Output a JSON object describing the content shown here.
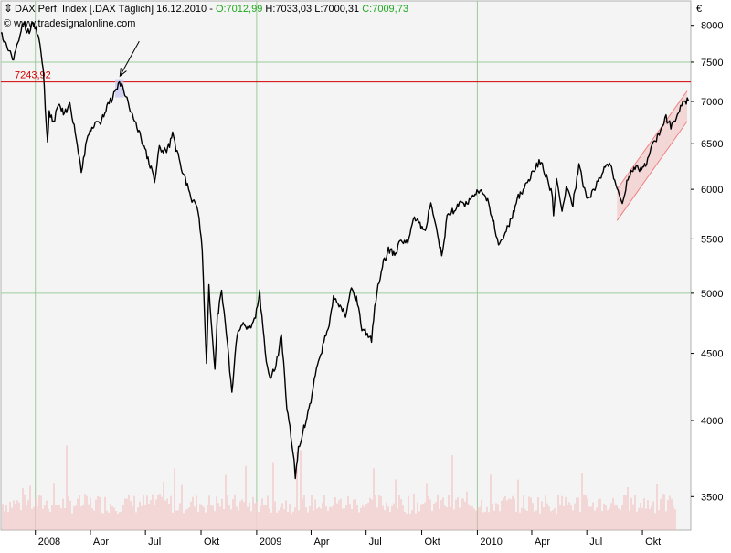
{
  "header": {
    "instrument": "DAX Perf. Index [.DAX  Täglich]",
    "date": "16.12.2010",
    "open": "O:7012,99",
    "high": "H:7033,03",
    "low": "L:7000,31",
    "close": "C:7009,73",
    "source": "© www.tradesignalonline.com",
    "currency": "€"
  },
  "colors": {
    "price": "#000000",
    "grid": "#9ccc9c",
    "resistance": "#d40000",
    "close_text": "#1faa1f",
    "channel": "#f08080",
    "volume": "#f2b8b8",
    "background": "#f4f4f4"
  },
  "chart_data": {
    "type": "line",
    "title": "DAX Perf. Index [.DAX  Täglich]",
    "y_scale": "log",
    "ylim": [
      3300,
      8350
    ],
    "yticks": [
      3500,
      4000,
      4500,
      5000,
      5500,
      6000,
      6500,
      7000,
      7500,
      8000
    ],
    "ytick_labels": [
      "3500",
      "4000",
      "4500",
      "5000",
      "5500",
      "6000",
      "6500",
      "7000",
      "7500",
      "8000"
    ],
    "x_range": [
      "2007-11-05",
      "2010-12-20"
    ],
    "xticks": [
      {
        "date": "2008-01-01",
        "label": "2008"
      },
      {
        "date": "2008-04-01",
        "label": "Apr"
      },
      {
        "date": "2008-07-01",
        "label": "Jul"
      },
      {
        "date": "2008-10-01",
        "label": "Okt"
      },
      {
        "date": "2009-01-01",
        "label": "2009"
      },
      {
        "date": "2009-04-01",
        "label": "Apr"
      },
      {
        "date": "2009-07-01",
        "label": "Jul"
      },
      {
        "date": "2009-10-01",
        "label": "Okt"
      },
      {
        "date": "2010-01-01",
        "label": "2010"
      },
      {
        "date": "2010-04-01",
        "label": "Apr"
      },
      {
        "date": "2010-07-01",
        "label": "Jul"
      },
      {
        "date": "2010-10-01",
        "label": "Okt"
      }
    ],
    "vertical_grid": [
      "2008-01-01",
      "2009-01-01",
      "2010-01-01"
    ],
    "horizontal_grid": [
      5000,
      7500
    ],
    "series": [
      {
        "values": [
          [
            "2007-11-05",
            7900
          ],
          [
            "2007-11-15",
            7700
          ],
          [
            "2007-11-26",
            7550
          ],
          [
            "2007-12-03",
            7750
          ],
          [
            "2007-12-12",
            8050
          ],
          [
            "2007-12-20",
            7900
          ],
          [
            "2007-12-28",
            8050
          ],
          [
            "2008-01-07",
            7800
          ],
          [
            "2008-01-14",
            7400
          ],
          [
            "2008-01-21",
            6500
          ],
          [
            "2008-01-24",
            6850
          ],
          [
            "2008-01-31",
            6750
          ],
          [
            "2008-02-08",
            6950
          ],
          [
            "2008-02-18",
            6850
          ],
          [
            "2008-02-27",
            6950
          ],
          [
            "2008-03-07",
            6650
          ],
          [
            "2008-03-17",
            6200
          ],
          [
            "2008-03-26",
            6550
          ],
          [
            "2008-04-07",
            6700
          ],
          [
            "2008-04-18",
            6750
          ],
          [
            "2008-04-30",
            6950
          ],
          [
            "2008-05-08",
            7050
          ],
          [
            "2008-05-19",
            7230
          ],
          [
            "2008-05-28",
            7100
          ],
          [
            "2008-06-06",
            6900
          ],
          [
            "2008-06-17",
            6700
          ],
          [
            "2008-06-27",
            6500
          ],
          [
            "2008-07-07",
            6300
          ],
          [
            "2008-07-16",
            6100
          ],
          [
            "2008-07-24",
            6450
          ],
          [
            "2008-08-05",
            6400
          ],
          [
            "2008-08-15",
            6600
          ],
          [
            "2008-08-26",
            6300
          ],
          [
            "2008-09-05",
            6100
          ],
          [
            "2008-09-16",
            5900
          ],
          [
            "2008-09-26",
            5800
          ],
          [
            "2008-10-03",
            5400
          ],
          [
            "2008-10-10",
            4400
          ],
          [
            "2008-10-14",
            5050
          ],
          [
            "2008-10-24",
            4350
          ],
          [
            "2008-10-28",
            4800
          ],
          [
            "2008-11-04",
            5000
          ],
          [
            "2008-11-12",
            4650
          ],
          [
            "2008-11-21",
            4200
          ],
          [
            "2008-11-28",
            4600
          ],
          [
            "2008-12-08",
            4750
          ],
          [
            "2008-12-19",
            4700
          ],
          [
            "2008-12-30",
            4800
          ],
          [
            "2009-01-06",
            5000
          ],
          [
            "2009-01-15",
            4500
          ],
          [
            "2009-01-23",
            4300
          ],
          [
            "2009-02-02",
            4400
          ],
          [
            "2009-02-11",
            4650
          ],
          [
            "2009-02-20",
            4100
          ],
          [
            "2009-03-02",
            3800
          ],
          [
            "2009-03-06",
            3620
          ],
          [
            "2009-03-11",
            3800
          ],
          [
            "2009-03-20",
            3950
          ],
          [
            "2009-03-30",
            4100
          ],
          [
            "2009-04-08",
            4350
          ],
          [
            "2009-04-17",
            4500
          ],
          [
            "2009-04-29",
            4700
          ],
          [
            "2009-05-08",
            4950
          ],
          [
            "2009-05-19",
            4900
          ],
          [
            "2009-05-28",
            4800
          ],
          [
            "2009-06-05",
            5050
          ],
          [
            "2009-06-15",
            4950
          ],
          [
            "2009-06-24",
            4700
          ],
          [
            "2009-07-03",
            4650
          ],
          [
            "2009-07-10",
            4600
          ],
          [
            "2009-07-17",
            4950
          ],
          [
            "2009-07-28",
            5250
          ],
          [
            "2009-08-07",
            5400
          ],
          [
            "2009-08-19",
            5350
          ],
          [
            "2009-08-28",
            5500
          ],
          [
            "2009-09-08",
            5450
          ],
          [
            "2009-09-17",
            5700
          ],
          [
            "2009-09-28",
            5650
          ],
          [
            "2009-10-07",
            5600
          ],
          [
            "2009-10-16",
            5850
          ],
          [
            "2009-10-27",
            5550
          ],
          [
            "2009-11-03",
            5350
          ],
          [
            "2009-11-12",
            5700
          ],
          [
            "2009-11-24",
            5800
          ],
          [
            "2009-12-04",
            5850
          ],
          [
            "2009-12-15",
            5850
          ],
          [
            "2009-12-28",
            5950
          ],
          [
            "2010-01-07",
            6000
          ],
          [
            "2010-01-18",
            5900
          ],
          [
            "2010-01-28",
            5650
          ],
          [
            "2010-02-05",
            5450
          ],
          [
            "2010-02-16",
            5550
          ],
          [
            "2010-02-26",
            5700
          ],
          [
            "2010-03-08",
            5900
          ],
          [
            "2010-03-18",
            6000
          ],
          [
            "2010-03-30",
            6150
          ],
          [
            "2010-04-09",
            6250
          ],
          [
            "2010-04-15",
            6300
          ],
          [
            "2010-04-27",
            6100
          ],
          [
            "2010-05-05",
            5950
          ],
          [
            "2010-05-07",
            5700
          ],
          [
            "2010-05-12",
            6150
          ],
          [
            "2010-05-21",
            5800
          ],
          [
            "2010-05-28",
            6000
          ],
          [
            "2010-06-08",
            5850
          ],
          [
            "2010-06-18",
            6250
          ],
          [
            "2010-06-29",
            5950
          ],
          [
            "2010-07-06",
            5900
          ],
          [
            "2010-07-16",
            6050
          ],
          [
            "2010-07-28",
            6200
          ],
          [
            "2010-08-09",
            6300
          ],
          [
            "2010-08-20",
            6000
          ],
          [
            "2010-08-27",
            5850
          ],
          [
            "2010-09-07",
            6100
          ],
          [
            "2010-09-17",
            6250
          ],
          [
            "2010-09-28",
            6200
          ],
          [
            "2010-10-08",
            6300
          ],
          [
            "2010-10-19",
            6500
          ],
          [
            "2010-10-29",
            6600
          ],
          [
            "2010-11-09",
            6800
          ],
          [
            "2010-11-17",
            6700
          ],
          [
            "2010-11-26",
            6800
          ],
          [
            "2010-12-03",
            6950
          ],
          [
            "2010-12-09",
            7000
          ],
          [
            "2010-12-16",
            7010
          ]
        ]
      }
    ],
    "annotations": [
      {
        "type": "hline",
        "value": 7243.92,
        "label": "7243,92"
      },
      {
        "type": "highlight",
        "date_from": "2008-05-12",
        "date_to": "2008-05-26",
        "y_from": 7050,
        "y_to": 7280
      },
      {
        "type": "arrow",
        "target_date": "2008-05-20",
        "target_value": 7320
      },
      {
        "type": "channel",
        "upper": [
          [
            "2010-08-20",
            6000
          ],
          [
            "2010-12-14",
            7130
          ]
        ],
        "lower": [
          [
            "2010-08-20",
            5680
          ],
          [
            "2010-12-14",
            6760
          ]
        ]
      }
    ],
    "volume": "bars at bottom of chart"
  }
}
